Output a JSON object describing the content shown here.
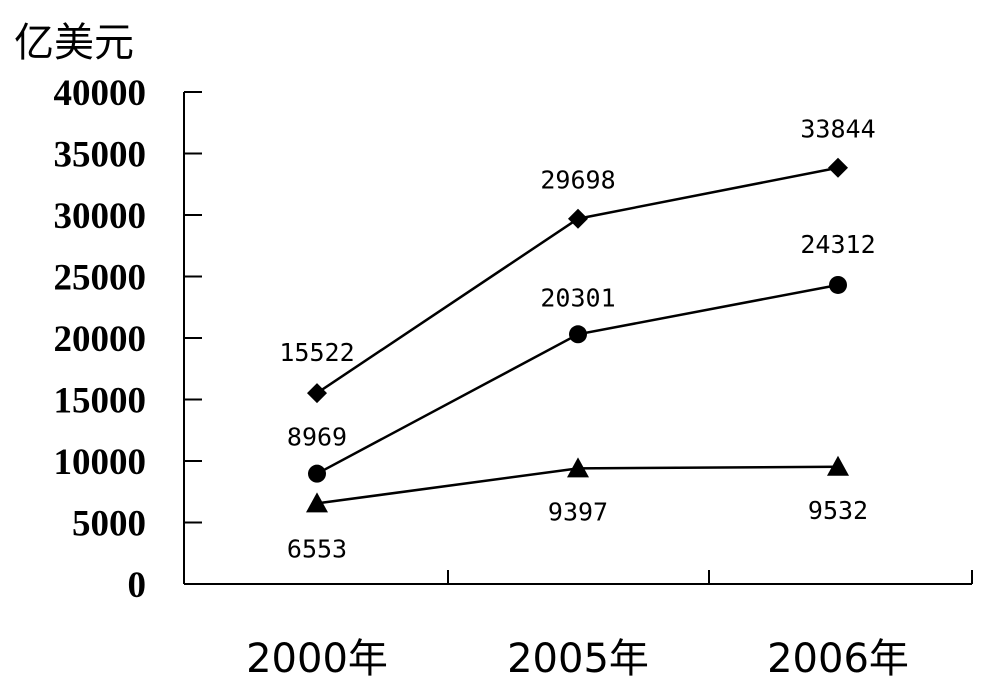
{
  "chart_data": {
    "type": "line",
    "unit_label": "亿美元",
    "categories": [
      "2000年",
      "2005年",
      "2006年"
    ],
    "ylim": [
      0,
      40000
    ],
    "yticks": [
      0,
      5000,
      10000,
      15000,
      20000,
      25000,
      30000,
      35000,
      40000
    ],
    "grid": false,
    "legend": "none",
    "series": [
      {
        "marker": "diamond",
        "values": [
          15522,
          29698,
          33844
        ],
        "labels": [
          "15522",
          "29698",
          "33844"
        ]
      },
      {
        "marker": "circle",
        "values": [
          8969,
          20301,
          24312
        ],
        "labels": [
          "8969",
          "20301",
          "24312"
        ]
      },
      {
        "marker": "triangle",
        "values": [
          6553,
          9397,
          9532
        ],
        "labels": [
          "6553",
          "9397",
          "9532"
        ]
      }
    ],
    "colors": {
      "line": "#000000",
      "marker": "#000000"
    }
  }
}
